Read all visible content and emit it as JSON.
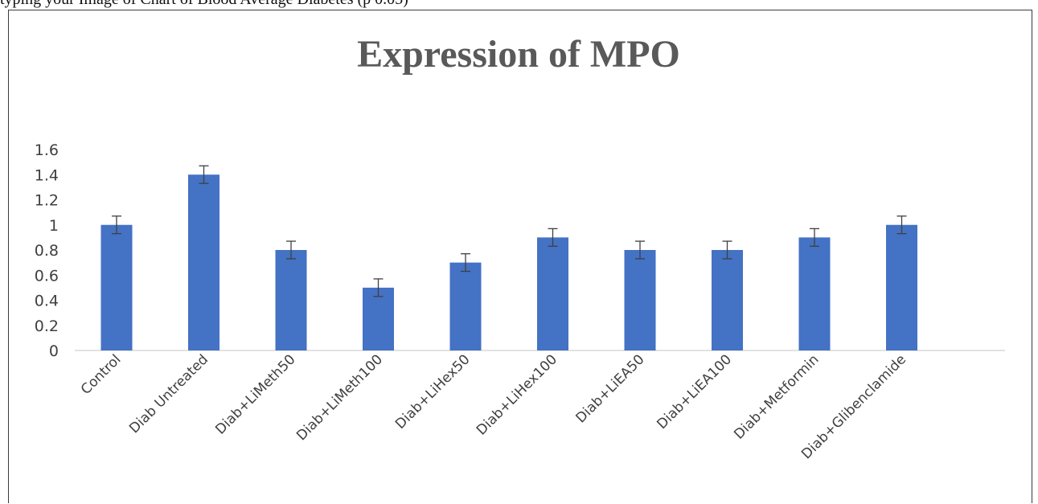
{
  "caption_fragment": "typing your Image of Chart of Blood Average Diabetes (p 0.05)",
  "chart_data": {
    "type": "bar",
    "title": "Expression of MPO",
    "xlabel": "",
    "ylabel": "",
    "ylim": [
      0,
      1.6
    ],
    "yticks": [
      "0",
      "0.2",
      "0.4",
      "0.6",
      "0.8",
      "1",
      "1.2",
      "1.4",
      "1.6"
    ],
    "categories": [
      "Control",
      "Diab Untreated",
      "Diab+LiMeth50",
      "Diab+LiMeth100",
      "Diab+LiHex50",
      "Diab+LiHex100",
      "Diab+LiEA50",
      "Diab+LiEA100",
      "Diab+Metformin",
      "Diab+Glibenclamide"
    ],
    "values": [
      1.0,
      1.4,
      0.8,
      0.5,
      0.7,
      0.9,
      0.8,
      0.8,
      0.9,
      1.0
    ],
    "error": [
      0.07,
      0.07,
      0.07,
      0.07,
      0.07,
      0.07,
      0.07,
      0.07,
      0.07,
      0.07
    ],
    "grid": false,
    "legend": "none",
    "bar_color": "#4472c4",
    "error_bar_color": "#404040",
    "axis_color": "#d9d9d9"
  }
}
